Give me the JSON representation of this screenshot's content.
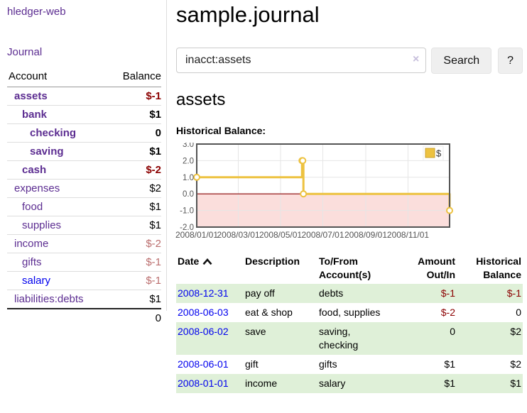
{
  "app": {
    "brand": "hledger-web"
  },
  "sidebar": {
    "journal_link": "Journal",
    "account_header": "Account",
    "balance_header": "Balance",
    "accounts": [
      {
        "name": "assets",
        "balance": "$-1",
        "level": 1,
        "bold": true,
        "balance_style": "neg-strong",
        "link_style": ""
      },
      {
        "name": "bank",
        "balance": "$1",
        "level": 2,
        "bold": true,
        "balance_style": "",
        "link_style": ""
      },
      {
        "name": "checking",
        "balance": "0",
        "level": 3,
        "bold": true,
        "balance_style": "",
        "link_style": ""
      },
      {
        "name": "saving",
        "balance": "$1",
        "level": 3,
        "bold": true,
        "balance_style": "",
        "link_style": ""
      },
      {
        "name": "cash",
        "balance": "$-2",
        "level": 2,
        "bold": true,
        "balance_style": "neg-strong",
        "link_style": ""
      },
      {
        "name": "expenses",
        "balance": "$2",
        "level": 1,
        "bold": false,
        "balance_style": "",
        "link_style": ""
      },
      {
        "name": "food",
        "balance": "$1",
        "level": 2,
        "bold": false,
        "balance_style": "",
        "link_style": ""
      },
      {
        "name": "supplies",
        "balance": "$1",
        "level": 2,
        "bold": false,
        "balance_style": "",
        "link_style": ""
      },
      {
        "name": "income",
        "balance": "$-2",
        "level": 1,
        "bold": false,
        "balance_style": "neg-dim",
        "link_style": ""
      },
      {
        "name": "gifts",
        "balance": "$-1",
        "level": 2,
        "bold": false,
        "balance_style": "neg-dim",
        "link_style": ""
      },
      {
        "name": "salary",
        "balance": "$-1",
        "level": 2,
        "bold": false,
        "balance_style": "neg-dim",
        "link_style": "blue"
      },
      {
        "name": "liabilities:debts",
        "balance": "$1",
        "level": 1,
        "bold": false,
        "balance_style": "",
        "link_style": ""
      }
    ],
    "total": "0"
  },
  "header": {
    "title": "sample.journal"
  },
  "search": {
    "value": "inacct:assets",
    "clear_icon": "×",
    "button_label": "Search",
    "help_label": "?"
  },
  "account_page": {
    "title": "assets",
    "chart_label": "Historical Balance:"
  },
  "chart_data": {
    "type": "line",
    "step": true,
    "title": "Historical Balance",
    "series": [
      {
        "name": "$",
        "color": "#edc240",
        "points": [
          {
            "x": "2008-01-01",
            "y": 1
          },
          {
            "x": "2008-06-01",
            "y": 2
          },
          {
            "x": "2008-06-02",
            "y": 2
          },
          {
            "x": "2008-06-03",
            "y": 0
          },
          {
            "x": "2008-12-31",
            "y": -1
          }
        ]
      }
    ],
    "x_ticks": [
      {
        "date": "2008-01-01",
        "label": "2008/01/01"
      },
      {
        "date": "2008-03-01",
        "label": "2008/03/01"
      },
      {
        "date": "2008-05-01",
        "label": "2008/05/01"
      },
      {
        "date": "2008-07-01",
        "label": "2008/07/01"
      },
      {
        "date": "2008-09-01",
        "label": "2008/09/01"
      },
      {
        "date": "2008-11-01",
        "label": "2008/11/01"
      }
    ],
    "y_ticks": [
      {
        "value": 3,
        "label": "3.0"
      },
      {
        "value": 2,
        "label": "2.0"
      },
      {
        "value": 1,
        "label": "1.0"
      },
      {
        "value": 0,
        "label": "0.0"
      },
      {
        "value": -1,
        "label": "-1.0"
      },
      {
        "value": -2,
        "label": "-2.0"
      }
    ],
    "ylim": [
      -2,
      3
    ],
    "xlim": [
      "2008-01-01",
      "2008-12-31"
    ],
    "grid": true,
    "legend": {
      "label": "$",
      "position": "top-right"
    },
    "negative_region_color": "#fbdedc",
    "zero_line_color": "#8b0000",
    "grid_color": "#e6e6e6",
    "border_color": "#545454"
  },
  "register": {
    "headers": [
      {
        "lines": [
          "Date"
        ],
        "sort": true,
        "align": "left"
      },
      {
        "lines": [
          "Description"
        ],
        "sort": false,
        "align": "left"
      },
      {
        "lines": [
          "To/From",
          "Account(s)"
        ],
        "sort": false,
        "align": "left"
      },
      {
        "lines": [
          "Amount",
          "Out/In"
        ],
        "sort": false,
        "align": "right"
      },
      {
        "lines": [
          "Historical",
          "Balance"
        ],
        "sort": false,
        "align": "right"
      }
    ],
    "rows": [
      {
        "date": "2008-12-31",
        "description": "pay off",
        "accounts": "debts",
        "amount": "$-1",
        "amount_neg": true,
        "balance": "$-1",
        "balance_neg": true
      },
      {
        "date": "2008-06-03",
        "description": "eat & shop",
        "accounts": "food, supplies",
        "amount": "$-2",
        "amount_neg": true,
        "balance": "0",
        "balance_neg": false
      },
      {
        "date": "2008-06-02",
        "description": "save",
        "accounts": "saving,\nchecking",
        "amount": "0",
        "amount_neg": false,
        "balance": "$2",
        "balance_neg": false
      },
      {
        "date": "2008-06-01",
        "description": "gift",
        "accounts": "gifts",
        "amount": "$1",
        "amount_neg": false,
        "balance": "$2",
        "balance_neg": false
      },
      {
        "date": "2008-01-01",
        "description": "income",
        "accounts": "salary",
        "amount": "$1",
        "amount_neg": false,
        "balance": "$1",
        "balance_neg": false
      }
    ]
  },
  "colors": {
    "accent_purple": "#5c2d91",
    "link_blue": "#0000ee",
    "negative_red": "#8b0000",
    "negative_dim": "#bb6e6e",
    "row_green": "#dff0d8",
    "series_yellow": "#edc240"
  }
}
